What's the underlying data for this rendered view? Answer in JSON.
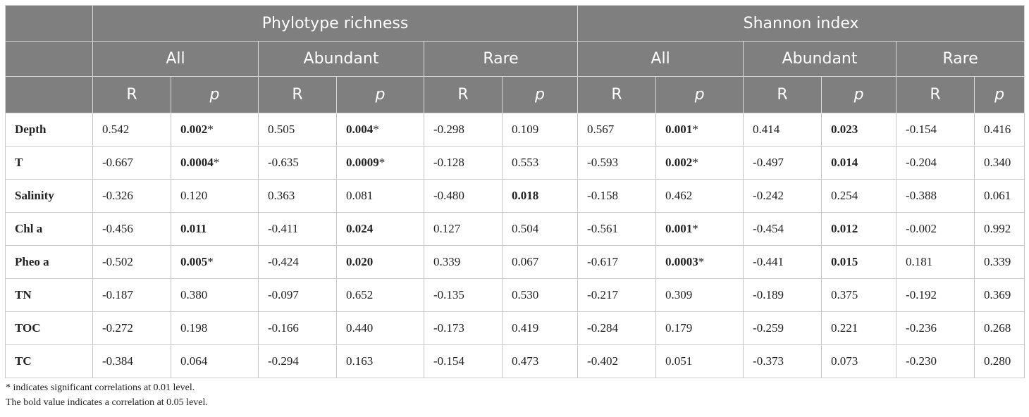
{
  "header": {
    "groups": [
      "Phylotype richness",
      "Shannon index"
    ],
    "subgroups": [
      "All",
      "Abundant",
      "Rare",
      "All",
      "Abundant",
      "Rare"
    ],
    "stat_labels": [
      "R",
      "p"
    ]
  },
  "rows": [
    {
      "label": "Depth",
      "cells": [
        [
          "0.542",
          false,
          ""
        ],
        [
          "0.002",
          true,
          "*"
        ],
        [
          "0.505",
          false,
          ""
        ],
        [
          "0.004",
          true,
          "*"
        ],
        [
          "-0.298",
          false,
          ""
        ],
        [
          "0.109",
          false,
          ""
        ],
        [
          "0.567",
          false,
          ""
        ],
        [
          "0.001",
          true,
          "*"
        ],
        [
          "0.414",
          false,
          ""
        ],
        [
          "0.023",
          true,
          ""
        ],
        [
          "-0.154",
          false,
          ""
        ],
        [
          "0.416",
          false,
          ""
        ]
      ]
    },
    {
      "label": "T",
      "cells": [
        [
          "-0.667",
          false,
          ""
        ],
        [
          "0.0004",
          true,
          "*"
        ],
        [
          "-0.635",
          false,
          ""
        ],
        [
          "0.0009",
          true,
          "*"
        ],
        [
          "-0.128",
          false,
          ""
        ],
        [
          "0.553",
          false,
          ""
        ],
        [
          "-0.593",
          false,
          ""
        ],
        [
          "0.002",
          true,
          "*"
        ],
        [
          "-0.497",
          false,
          ""
        ],
        [
          "0.014",
          true,
          ""
        ],
        [
          "-0.204",
          false,
          ""
        ],
        [
          "0.340",
          false,
          ""
        ]
      ]
    },
    {
      "label": "Salinity",
      "cells": [
        [
          "-0.326",
          false,
          ""
        ],
        [
          "0.120",
          false,
          ""
        ],
        [
          "0.363",
          false,
          ""
        ],
        [
          "0.081",
          false,
          ""
        ],
        [
          "-0.480",
          false,
          ""
        ],
        [
          "0.018",
          true,
          ""
        ],
        [
          "-0.158",
          false,
          ""
        ],
        [
          "0.462",
          false,
          ""
        ],
        [
          "-0.242",
          false,
          ""
        ],
        [
          "0.254",
          false,
          ""
        ],
        [
          "-0.388",
          false,
          ""
        ],
        [
          "0.061",
          false,
          ""
        ]
      ]
    },
    {
      "label": "Chl a",
      "cells": [
        [
          "-0.456",
          false,
          ""
        ],
        [
          "0.011",
          true,
          ""
        ],
        [
          "-0.411",
          false,
          ""
        ],
        [
          "0.024",
          true,
          ""
        ],
        [
          "0.127",
          false,
          ""
        ],
        [
          "0.504",
          false,
          ""
        ],
        [
          "-0.561",
          false,
          ""
        ],
        [
          "0.001",
          true,
          "*"
        ],
        [
          "-0.454",
          false,
          ""
        ],
        [
          "0.012",
          true,
          ""
        ],
        [
          "-0.002",
          false,
          ""
        ],
        [
          "0.992",
          false,
          ""
        ]
      ]
    },
    {
      "label": "Pheo a",
      "cells": [
        [
          "-0.502",
          false,
          ""
        ],
        [
          "0.005",
          true,
          "*"
        ],
        [
          "-0.424",
          false,
          ""
        ],
        [
          "0.020",
          true,
          ""
        ],
        [
          "0.339",
          false,
          ""
        ],
        [
          "0.067",
          false,
          ""
        ],
        [
          "-0.617",
          false,
          ""
        ],
        [
          "0.0003",
          true,
          "*"
        ],
        [
          "-0.441",
          false,
          ""
        ],
        [
          "0.015",
          true,
          ""
        ],
        [
          "0.181",
          false,
          ""
        ],
        [
          "0.339",
          false,
          ""
        ]
      ]
    },
    {
      "label": "TN",
      "cells": [
        [
          "-0.187",
          false,
          ""
        ],
        [
          "0.380",
          false,
          ""
        ],
        [
          "-0.097",
          false,
          ""
        ],
        [
          "0.652",
          false,
          ""
        ],
        [
          "-0.135",
          false,
          ""
        ],
        [
          "0.530",
          false,
          ""
        ],
        [
          "-0.217",
          false,
          ""
        ],
        [
          "0.309",
          false,
          ""
        ],
        [
          "-0.189",
          false,
          ""
        ],
        [
          "0.375",
          false,
          ""
        ],
        [
          "-0.192",
          false,
          ""
        ],
        [
          "0.369",
          false,
          ""
        ]
      ]
    },
    {
      "label": "TOC",
      "cells": [
        [
          "-0.272",
          false,
          ""
        ],
        [
          "0.198",
          false,
          ""
        ],
        [
          "-0.166",
          false,
          ""
        ],
        [
          "0.440",
          false,
          ""
        ],
        [
          "-0.173",
          false,
          ""
        ],
        [
          "0.419",
          false,
          ""
        ],
        [
          "-0.284",
          false,
          ""
        ],
        [
          "0.179",
          false,
          ""
        ],
        [
          "-0.259",
          false,
          ""
        ],
        [
          "0.221",
          false,
          ""
        ],
        [
          "-0.236",
          false,
          ""
        ],
        [
          "0.268",
          false,
          ""
        ]
      ]
    },
    {
      "label": "TC",
      "cells": [
        [
          "-0.384",
          false,
          ""
        ],
        [
          "0.064",
          false,
          ""
        ],
        [
          "-0.294",
          false,
          ""
        ],
        [
          "0.163",
          false,
          ""
        ],
        [
          "-0.154",
          false,
          ""
        ],
        [
          "0.473",
          false,
          ""
        ],
        [
          "-0.402",
          false,
          ""
        ],
        [
          "0.051",
          false,
          ""
        ],
        [
          "-0.373",
          false,
          ""
        ],
        [
          "0.073",
          false,
          ""
        ],
        [
          "-0.230",
          false,
          ""
        ],
        [
          "0.280",
          false,
          ""
        ]
      ]
    }
  ],
  "notes": [
    "* indicates significant correlations at 0.01 level.",
    "The bold value indicates a correlation at 0.05 level."
  ],
  "colors": {
    "header_bg": "#7f7f7f",
    "header_text": "#ffffff",
    "border": "#c8c8c8"
  }
}
